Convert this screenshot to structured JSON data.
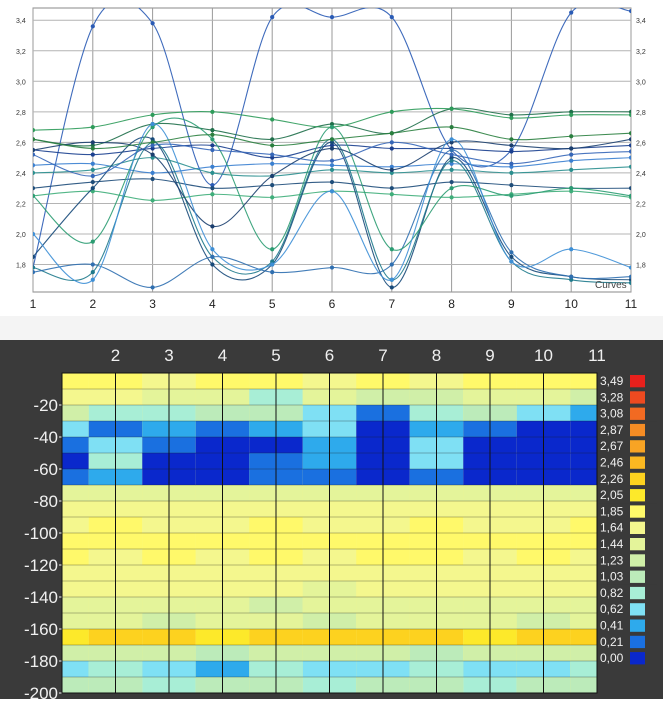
{
  "chart_data": [
    {
      "type": "line",
      "legend_label": "Curves",
      "x": [
        1,
        2,
        3,
        4,
        5,
        6,
        7,
        8,
        9,
        10,
        11
      ],
      "xticks": [
        "1",
        "2",
        "3",
        "4",
        "5",
        "6",
        "7",
        "8",
        "9",
        "10",
        "11"
      ],
      "yticks": [
        "1,8",
        "2,0",
        "2,2",
        "2,4",
        "2,6",
        "2,8",
        "3,0",
        "3,2",
        "3,4"
      ],
      "ylim": [
        1.62,
        3.48
      ],
      "grid": true,
      "series": [
        {
          "color": "#2a5bb5",
          "values": [
            1.78,
            3.36,
            3.38,
            2.32,
            3.42,
            3.42,
            3.42,
            2.55,
            2.55,
            3.45,
            3.46
          ]
        },
        {
          "color": "#1f6f4a",
          "values": [
            2.62,
            2.58,
            2.72,
            2.68,
            2.62,
            2.72,
            2.66,
            2.82,
            2.78,
            2.8,
            2.8
          ]
        },
        {
          "color": "#2e9b5a",
          "values": [
            2.68,
            2.7,
            2.78,
            2.8,
            2.75,
            2.7,
            2.8,
            2.82,
            2.76,
            2.78,
            2.78
          ]
        },
        {
          "color": "#1a3f8f",
          "values": [
            2.55,
            2.52,
            2.56,
            2.58,
            2.5,
            2.58,
            2.56,
            2.56,
            2.54,
            2.56,
            2.58
          ]
        },
        {
          "color": "#3a7fd0",
          "values": [
            2.45,
            2.46,
            2.4,
            2.44,
            2.46,
            2.45,
            2.44,
            2.46,
            2.44,
            2.48,
            2.5
          ]
        },
        {
          "color": "#2a8f8f",
          "values": [
            2.4,
            2.42,
            2.5,
            2.4,
            2.38,
            2.42,
            2.4,
            2.42,
            2.4,
            2.42,
            2.44
          ]
        },
        {
          "color": "#1e4d7a",
          "values": [
            2.3,
            2.34,
            2.36,
            2.3,
            2.32,
            2.34,
            2.3,
            2.34,
            2.32,
            2.3,
            2.3
          ]
        },
        {
          "color": "#3fae7a",
          "values": [
            2.25,
            2.28,
            2.22,
            2.26,
            2.24,
            2.28,
            2.26,
            2.24,
            2.26,
            2.28,
            2.24
          ]
        },
        {
          "color": "#174a7a",
          "values": [
            1.85,
            2.3,
            2.62,
            1.8,
            1.8,
            2.6,
            1.65,
            2.5,
            1.85,
            1.72,
            1.7
          ]
        },
        {
          "color": "#1f7a8c",
          "values": [
            1.78,
            1.75,
            2.6,
            1.85,
            1.82,
            2.62,
            1.7,
            2.48,
            1.82,
            1.7,
            1.68
          ]
        },
        {
          "color": "#2f6fb0",
          "values": [
            1.75,
            1.8,
            1.65,
            1.85,
            1.75,
            1.78,
            1.8,
            2.55,
            1.88,
            1.72,
            1.72
          ]
        },
        {
          "color": "#2b9c72",
          "values": [
            2.25,
            1.95,
            2.7,
            2.62,
            1.9,
            2.7,
            1.9,
            2.3,
            2.25,
            2.3,
            2.25
          ]
        },
        {
          "color": "#1b3f6f",
          "values": [
            2.55,
            2.6,
            2.52,
            2.05,
            2.38,
            2.56,
            2.42,
            2.6,
            2.58,
            2.56,
            2.62
          ]
        },
        {
          "color": "#3d8fd6",
          "values": [
            2.0,
            1.7,
            2.72,
            1.9,
            1.8,
            2.28,
            1.7,
            2.62,
            1.82,
            1.9,
            1.78
          ]
        },
        {
          "color": "#2a7f3f",
          "values": [
            2.62,
            2.56,
            2.6,
            2.65,
            2.58,
            2.62,
            2.66,
            2.7,
            2.62,
            2.64,
            2.66
          ]
        },
        {
          "color": "#3566b8",
          "values": [
            2.52,
            2.38,
            2.58,
            2.55,
            2.52,
            2.48,
            2.6,
            2.52,
            2.46,
            2.52,
            2.54
          ]
        }
      ]
    },
    {
      "type": "heatmap",
      "x": [
        1,
        2,
        3,
        4,
        5,
        6,
        7,
        8,
        9,
        10,
        11
      ],
      "xticks": [
        "2",
        "3",
        "4",
        "5",
        "6",
        "7",
        "8",
        "9",
        "10",
        "11"
      ],
      "y": [
        -5,
        -15,
        -25,
        -35,
        -45,
        -55,
        -65,
        -75,
        -85,
        -95,
        -105,
        -115,
        -125,
        -135,
        -145,
        -155,
        -165,
        -175,
        -185,
        -195
      ],
      "yticks": [
        "-20",
        "-40",
        "-60",
        "-80",
        "-100",
        "-120",
        "-140",
        "-160",
        "-180",
        "-200"
      ],
      "ylim": [
        -200,
        0
      ],
      "z": [
        [
          1.85,
          1.85,
          1.8,
          1.85,
          1.85,
          1.8,
          1.85,
          1.8,
          1.85,
          1.85,
          1.85
        ],
        [
          1.7,
          1.65,
          1.6,
          1.6,
          1.0,
          1.5,
          1.3,
          1.4,
          1.6,
          1.5,
          1.4
        ],
        [
          1.3,
          1.0,
          0.9,
          1.1,
          1.2,
          0.8,
          0.4,
          0.9,
          1.1,
          0.8,
          0.6
        ],
        [
          0.7,
          0.4,
          0.45,
          0.3,
          0.5,
          0.7,
          0.2,
          0.6,
          0.4,
          0.1,
          0.05
        ],
        [
          0.3,
          0.8,
          0.3,
          0.2,
          0.2,
          0.6,
          0.1,
          0.7,
          0.2,
          0.0,
          0.0
        ],
        [
          0.2,
          0.9,
          0.0,
          0.0,
          0.4,
          0.5,
          0.05,
          0.8,
          0.2,
          0.0,
          0.0
        ],
        [
          0.3,
          0.6,
          0.1,
          0.1,
          0.3,
          0.3,
          0.0,
          0.4,
          0.1,
          0.1,
          0.1
        ],
        [
          1.6,
          1.55,
          1.6,
          1.55,
          1.6,
          1.6,
          1.55,
          1.6,
          1.6,
          1.55,
          1.6
        ],
        [
          1.65,
          1.7,
          1.7,
          1.75,
          1.7,
          1.7,
          1.75,
          1.7,
          1.7,
          1.75,
          1.7
        ],
        [
          1.8,
          1.85,
          1.8,
          1.8,
          1.85,
          1.8,
          1.8,
          1.85,
          1.8,
          1.8,
          1.85
        ],
        [
          1.9,
          1.85,
          1.9,
          1.9,
          1.85,
          1.9,
          1.9,
          1.85,
          1.9,
          1.9,
          1.85
        ],
        [
          1.85,
          1.8,
          1.85,
          1.8,
          1.85,
          1.8,
          1.85,
          1.85,
          1.8,
          1.85,
          1.8
        ],
        [
          1.75,
          1.8,
          1.7,
          1.75,
          1.8,
          1.75,
          1.7,
          1.75,
          1.8,
          1.75,
          1.7
        ],
        [
          1.7,
          1.65,
          1.7,
          1.65,
          1.7,
          1.6,
          1.7,
          1.65,
          1.7,
          1.65,
          1.7
        ],
        [
          1.55,
          1.5,
          1.55,
          1.5,
          1.4,
          1.55,
          1.5,
          1.55,
          1.5,
          1.55,
          1.5
        ],
        [
          1.45,
          1.5,
          1.4,
          1.45,
          1.5,
          1.4,
          1.45,
          1.5,
          1.45,
          1.4,
          1.45
        ],
        [
          2.2,
          2.35,
          2.3,
          2.2,
          2.4,
          2.35,
          2.3,
          2.35,
          2.2,
          2.3,
          2.4
        ],
        [
          1.4,
          1.3,
          1.35,
          1.2,
          1.3,
          1.4,
          1.3,
          1.2,
          1.4,
          1.3,
          1.35
        ],
        [
          0.7,
          0.9,
          0.8,
          0.6,
          0.9,
          0.7,
          0.8,
          0.9,
          0.7,
          0.8,
          0.9
        ],
        [
          1.1,
          1.2,
          1.0,
          1.2,
          1.1,
          1.0,
          1.2,
          1.1,
          1.0,
          1.2,
          1.1
        ]
      ],
      "colorbar": {
        "labels": [
          "3,49",
          "3,28",
          "3,08",
          "2,87",
          "2,67",
          "2,46",
          "2,26",
          "2,05",
          "1,85",
          "1,64",
          "1,44",
          "1,23",
          "1,03",
          "0,82",
          "0,62",
          "0,41",
          "0,21",
          "0,00"
        ],
        "colors": [
          "#e8201c",
          "#ee4a20",
          "#f26a22",
          "#f58c24",
          "#f8a424",
          "#fbb821",
          "#fdd21f",
          "#fde92a",
          "#fff96a",
          "#f4f78e",
          "#e4f49a",
          "#d0efa8",
          "#bcebba",
          "#a8eed6",
          "#7fe0f4",
          "#2eaaec",
          "#1a70e0",
          "#0a28cc"
        ]
      }
    }
  ]
}
